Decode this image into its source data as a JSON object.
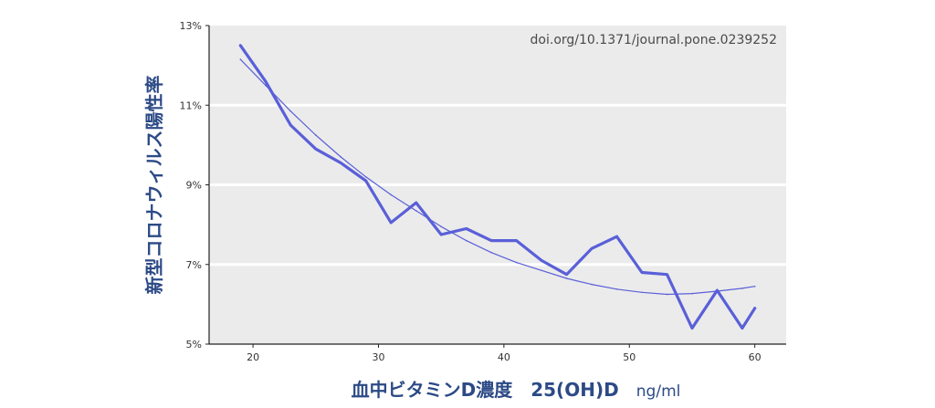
{
  "chart_data": {
    "type": "line",
    "annotation": "doi.org/10.1371/journal.pone.0239252",
    "ylabel": "新型コロナウィルス陽性率",
    "xlabel": "血中ビタミンD濃度　25(OH)D",
    "xlabel_unit": "ng/ml",
    "xlim": [
      16.5,
      62.5
    ],
    "ylim": [
      5,
      13
    ],
    "x_ticks": [
      20,
      30,
      40,
      50,
      60
    ],
    "x_tick_labels": [
      "20",
      "30",
      "40",
      "50",
      "60"
    ],
    "y_ticks": [
      5,
      7,
      9,
      11,
      13
    ],
    "y_tick_labels": [
      "5%",
      "7%",
      "9%",
      "11%",
      "13%"
    ],
    "grid": "horizontal",
    "colors": {
      "series": "#5a5fd8",
      "panel": "#ebebeb",
      "grid": "#ffffff",
      "label": "#2c4a86"
    },
    "series": [
      {
        "style": "thick",
        "x": [
          19,
          21,
          23,
          25,
          27,
          29,
          31,
          33,
          35,
          37,
          39,
          41,
          43,
          45,
          47,
          49,
          51,
          53,
          55,
          57,
          59,
          60
        ],
        "y": [
          12.5,
          11.6,
          10.5,
          9.9,
          9.55,
          9.1,
          8.05,
          8.55,
          7.75,
          7.9,
          7.6,
          7.6,
          7.1,
          6.75,
          7.4,
          7.7,
          6.8,
          6.75,
          5.4,
          6.35,
          5.4,
          5.9
        ]
      },
      {
        "style": "thin-trend",
        "x": [
          19,
          21,
          23,
          25,
          27,
          29,
          31,
          33,
          35,
          37,
          39,
          41,
          43,
          45,
          47,
          49,
          51,
          53,
          55,
          57,
          59,
          60
        ],
        "y": [
          12.15,
          11.5,
          10.85,
          10.25,
          9.7,
          9.2,
          8.75,
          8.35,
          7.95,
          7.6,
          7.3,
          7.05,
          6.85,
          6.65,
          6.5,
          6.38,
          6.3,
          6.25,
          6.27,
          6.33,
          6.4,
          6.45
        ]
      }
    ]
  }
}
